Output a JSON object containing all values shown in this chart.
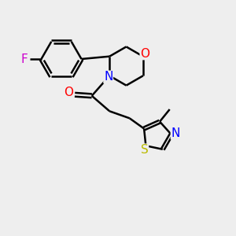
{
  "bg_color": "#eeeeee",
  "bond_color": "#000000",
  "F_color": "#cc00cc",
  "O_color": "#ff0000",
  "N_color": "#0000ff",
  "S_color": "#bbbb00",
  "line_width": 1.8,
  "font_size": 11,
  "fig_w": 3.0,
  "fig_h": 3.0,
  "dpi": 100,
  "xlim": [
    0,
    10
  ],
  "ylim": [
    0,
    10
  ]
}
